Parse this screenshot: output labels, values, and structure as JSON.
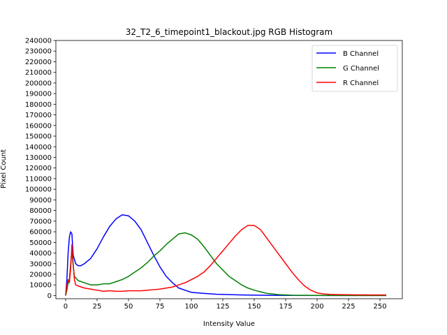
{
  "chart_data": {
    "type": "line",
    "title": "32_T2_6_timepoint1_blackout.jpg RGB Histogram",
    "xlabel": "Intensity Value",
    "ylabel": "Pixel Count",
    "xlim": [
      -7.75,
      267.75
    ],
    "ylim": [
      -3000,
      240000
    ],
    "xticks": [
      0,
      25,
      50,
      75,
      100,
      125,
      150,
      175,
      200,
      225,
      250
    ],
    "yticks": [
      0,
      10000,
      20000,
      30000,
      40000,
      50000,
      60000,
      70000,
      80000,
      90000,
      100000,
      110000,
      120000,
      130000,
      140000,
      150000,
      160000,
      170000,
      180000,
      190000,
      200000,
      210000,
      220000,
      230000,
      240000
    ],
    "grid": false,
    "legend_position": "top-right",
    "series": [
      {
        "name": "B Channel",
        "color": "#0000ff",
        "points": [
          [
            0,
            0
          ],
          [
            1,
            15000
          ],
          [
            2,
            40000
          ],
          [
            3,
            55000
          ],
          [
            4,
            60000
          ],
          [
            5,
            58000
          ],
          [
            6,
            38000
          ],
          [
            8,
            30000
          ],
          [
            10,
            28000
          ],
          [
            12,
            28000
          ],
          [
            15,
            30000
          ],
          [
            20,
            35000
          ],
          [
            25,
            44000
          ],
          [
            30,
            55000
          ],
          [
            35,
            65000
          ],
          [
            40,
            72000
          ],
          [
            45,
            76000
          ],
          [
            50,
            75000
          ],
          [
            55,
            70000
          ],
          [
            60,
            62000
          ],
          [
            65,
            50000
          ],
          [
            70,
            38000
          ],
          [
            75,
            27000
          ],
          [
            80,
            18000
          ],
          [
            85,
            12000
          ],
          [
            90,
            7000
          ],
          [
            95,
            5000
          ],
          [
            100,
            3000
          ],
          [
            110,
            2000
          ],
          [
            120,
            1200
          ],
          [
            140,
            500
          ],
          [
            160,
            200
          ],
          [
            180,
            100
          ],
          [
            200,
            50
          ],
          [
            220,
            20
          ],
          [
            255,
            0
          ]
        ]
      },
      {
        "name": "G Channel",
        "color": "#008000",
        "points": [
          [
            0,
            0
          ],
          [
            1,
            5000
          ],
          [
            2,
            12000
          ],
          [
            3,
            15000
          ],
          [
            4,
            30000
          ],
          [
            5,
            42000
          ],
          [
            6,
            28000
          ],
          [
            7,
            18000
          ],
          [
            10,
            14000
          ],
          [
            15,
            12000
          ],
          [
            20,
            10000
          ],
          [
            25,
            10000
          ],
          [
            30,
            11000
          ],
          [
            35,
            11000
          ],
          [
            40,
            13000
          ],
          [
            45,
            15000
          ],
          [
            50,
            18000
          ],
          [
            55,
            22000
          ],
          [
            60,
            26000
          ],
          [
            65,
            31000
          ],
          [
            70,
            37000
          ],
          [
            75,
            42000
          ],
          [
            80,
            48000
          ],
          [
            85,
            53000
          ],
          [
            90,
            58000
          ],
          [
            95,
            59000
          ],
          [
            100,
            57000
          ],
          [
            105,
            53000
          ],
          [
            110,
            46000
          ],
          [
            115,
            38000
          ],
          [
            120,
            30000
          ],
          [
            125,
            24000
          ],
          [
            130,
            18000
          ],
          [
            135,
            14000
          ],
          [
            140,
            10000
          ],
          [
            145,
            7000
          ],
          [
            150,
            5000
          ],
          [
            155,
            3500
          ],
          [
            160,
            2000
          ],
          [
            170,
            800
          ],
          [
            180,
            300
          ],
          [
            200,
            100
          ],
          [
            220,
            30
          ],
          [
            255,
            0
          ]
        ]
      },
      {
        "name": "R Channel",
        "color": "#ff0000",
        "points": [
          [
            0,
            0
          ],
          [
            1,
            10000
          ],
          [
            2,
            15000
          ],
          [
            3,
            12000
          ],
          [
            4,
            25000
          ],
          [
            5,
            48000
          ],
          [
            6,
            30000
          ],
          [
            7,
            15000
          ],
          [
            8,
            10000
          ],
          [
            10,
            9000
          ],
          [
            15,
            7000
          ],
          [
            20,
            6000
          ],
          [
            25,
            5000
          ],
          [
            30,
            4000
          ],
          [
            35,
            4500
          ],
          [
            40,
            4000
          ],
          [
            45,
            4000
          ],
          [
            50,
            4500
          ],
          [
            55,
            4500
          ],
          [
            60,
            4500
          ],
          [
            65,
            5000
          ],
          [
            70,
            5500
          ],
          [
            75,
            6000
          ],
          [
            80,
            7000
          ],
          [
            85,
            8000
          ],
          [
            90,
            10000
          ],
          [
            95,
            12000
          ],
          [
            100,
            15000
          ],
          [
            105,
            18000
          ],
          [
            110,
            22000
          ],
          [
            115,
            28000
          ],
          [
            120,
            35000
          ],
          [
            125,
            42000
          ],
          [
            130,
            49000
          ],
          [
            135,
            56000
          ],
          [
            140,
            62000
          ],
          [
            145,
            66000
          ],
          [
            150,
            66000
          ],
          [
            155,
            62000
          ],
          [
            160,
            54000
          ],
          [
            165,
            46000
          ],
          [
            170,
            38000
          ],
          [
            175,
            30000
          ],
          [
            180,
            22000
          ],
          [
            185,
            15000
          ],
          [
            190,
            9000
          ],
          [
            195,
            5000
          ],
          [
            200,
            2500
          ],
          [
            205,
            1500
          ],
          [
            210,
            1000
          ],
          [
            220,
            800
          ],
          [
            240,
            500
          ],
          [
            255,
            500
          ]
        ]
      }
    ]
  }
}
